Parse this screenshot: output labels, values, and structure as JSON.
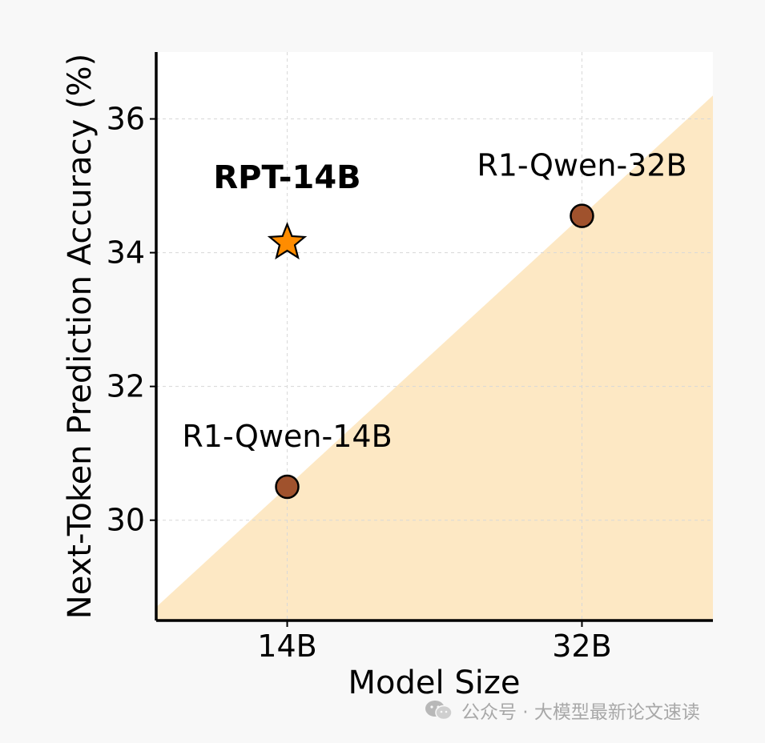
{
  "chart_data": {
    "type": "scatter",
    "xlabel": "Model Size",
    "ylabel": "Next-Token Prediction Accuracy (%)",
    "categories": [
      "14B",
      "32B"
    ],
    "x_ticks": [
      {
        "value": 14,
        "label": "14B"
      },
      {
        "value": 32,
        "label": "32B"
      }
    ],
    "y_ticks": [
      30,
      32,
      34,
      36
    ],
    "xlim": [
      6,
      40
    ],
    "ylim": [
      28.5,
      37
    ],
    "grid": true,
    "points": [
      {
        "name": "R1-Qwen-14B",
        "x": 14,
        "y": 30.5,
        "marker": "circle",
        "color": "#a0522d",
        "label_bold": false
      },
      {
        "name": "R1-Qwen-32B",
        "x": 32,
        "y": 34.55,
        "marker": "circle",
        "color": "#a0522d",
        "label_bold": false
      },
      {
        "name": "RPT-14B",
        "x": 14,
        "y": 34.15,
        "marker": "star",
        "color": "#ff8c00",
        "label_bold": true
      }
    ],
    "shaded_region": {
      "color": "#fde8c4",
      "from": {
        "x": 6,
        "y": 28.7
      },
      "to": {
        "x": 40,
        "y": 36.35
      }
    }
  },
  "watermark": {
    "text": "公众号 · 大模型最新论文速读",
    "icon": "wechat-icon"
  }
}
